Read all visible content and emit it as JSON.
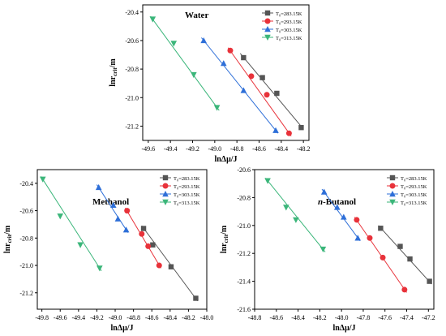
{
  "chart_data": [
    {
      "type": "scatter",
      "title": "Water",
      "title_style": "bold",
      "title_prefix": "",
      "xlabel": "lnΔμ/J",
      "ylabel_main": "lnr",
      "ylabel_sub": "crit",
      "ylabel_unit": "/m",
      "xlim": [
        -49.65,
        -48.15
      ],
      "ylim": [
        -21.3,
        -20.35
      ],
      "xticks": [
        -49.6,
        -49.4,
        -49.2,
        -49.0,
        -48.8,
        -48.6,
        -48.4,
        -48.2
      ],
      "yticks": [
        -21.2,
        -21.0,
        -20.8,
        -20.6,
        -20.4
      ],
      "grid": false,
      "legend_position": "top-right",
      "series": [
        {
          "name": "T₀=283.15K",
          "color": "#555555",
          "marker": "square",
          "x": [
            -48.74,
            -48.57,
            -48.44,
            -48.22
          ],
          "y": [
            -20.72,
            -20.86,
            -20.97,
            -21.21
          ],
          "fit_x": [
            -48.77,
            -48.2
          ],
          "fit_y": [
            -20.69,
            -21.22
          ]
        },
        {
          "name": "T₀=293.15K",
          "color": "#e8323a",
          "marker": "circle",
          "x": [
            -48.86,
            -48.67,
            -48.53,
            -48.33
          ],
          "y": [
            -20.67,
            -20.85,
            -20.98,
            -21.25
          ],
          "fit_x": [
            -48.88,
            -48.31
          ],
          "fit_y": [
            -20.65,
            -21.27
          ]
        },
        {
          "name": "T₀=303.15K",
          "color": "#2e6fd8",
          "marker": "triangle",
          "x": [
            -49.1,
            -48.92,
            -48.74,
            -48.45
          ],
          "y": [
            -20.6,
            -20.76,
            -20.95,
            -21.23
          ],
          "fit_x": [
            -49.12,
            -48.43
          ],
          "fit_y": [
            -20.58,
            -21.25
          ]
        },
        {
          "name": "T₀=313.15K",
          "color": "#3bb67a",
          "marker": "triangle-down",
          "x": [
            -49.56,
            -49.37,
            -49.19,
            -48.98
          ],
          "y": [
            -20.45,
            -20.62,
            -20.84,
            -21.07
          ],
          "fit_x": [
            -49.58,
            -48.96
          ],
          "fit_y": [
            -20.43,
            -21.09
          ]
        }
      ]
    },
    {
      "type": "scatter",
      "title": "Methanol",
      "title_style": "bold",
      "title_prefix": "",
      "xlabel": "lnΔμ/J",
      "ylabel_main": "lnr",
      "ylabel_sub": "crit",
      "ylabel_unit": "/m",
      "xlim": [
        -49.85,
        -48.0
      ],
      "ylim": [
        -21.32,
        -20.3
      ],
      "xticks": [
        -49.8,
        -49.6,
        -49.4,
        -49.2,
        -49.0,
        -48.8,
        -48.6,
        -48.4,
        -48.2,
        -48.0
      ],
      "yticks": [
        -21.2,
        -21.0,
        -20.8,
        -20.6,
        -20.4
      ],
      "grid": false,
      "legend_position": "top-right",
      "series": [
        {
          "name": "T₀=283.15K",
          "color": "#555555",
          "marker": "square",
          "x": [
            -48.69,
            -48.59,
            -48.39,
            -48.12
          ],
          "y": [
            -20.73,
            -20.85,
            -21.01,
            -21.24
          ],
          "fit_x": [
            -48.71,
            -48.1
          ],
          "fit_y": [
            -20.71,
            -21.26
          ]
        },
        {
          "name": "T₀=293.15K",
          "color": "#e8323a",
          "marker": "circle",
          "x": [
            -48.87,
            -48.71,
            -48.64,
            -48.52
          ],
          "y": [
            -20.6,
            -20.77,
            -20.86,
            -21.0
          ],
          "fit_x": [
            -48.89,
            -48.5
          ],
          "fit_y": [
            -20.58,
            -21.02
          ]
        },
        {
          "name": "T₀=303.15K",
          "color": "#2e6fd8",
          "marker": "triangle",
          "x": [
            -49.18,
            -49.02,
            -48.97,
            -48.88
          ],
          "y": [
            -20.43,
            -20.56,
            -20.66,
            -20.74
          ],
          "fit_x": [
            -49.2,
            -48.86
          ],
          "fit_y": [
            -20.41,
            -20.76
          ]
        },
        {
          "name": "T₀=313.15K",
          "color": "#3bb67a",
          "marker": "triangle-down",
          "x": [
            -49.79,
            -49.6,
            -49.38,
            -49.17
          ],
          "y": [
            -20.37,
            -20.64,
            -20.85,
            -21.02
          ],
          "fit_x": [
            -49.81,
            -49.15
          ],
          "fit_y": [
            -20.35,
            -21.04
          ]
        }
      ]
    },
    {
      "type": "scatter",
      "title": "Butanol",
      "title_style": "bold",
      "title_prefix": "n-",
      "xlabel": "lnΔμ/J",
      "ylabel_main": "lnr",
      "ylabel_sub": "crit",
      "ylabel_unit": "/m",
      "xlim": [
        -48.8,
        -47.15
      ],
      "ylim": [
        -21.6,
        -20.6
      ],
      "xticks": [
        -48.8,
        -48.6,
        -48.4,
        -48.2,
        -48.0,
        -47.8,
        -47.6,
        -47.4,
        -47.2
      ],
      "yticks": [
        -21.6,
        -21.4,
        -21.2,
        -21.0,
        -20.8,
        -20.6
      ],
      "grid": false,
      "legend_position": "top-right",
      "series": [
        {
          "name": "T₀=283.15K",
          "color": "#555555",
          "marker": "square",
          "x": [
            -47.64,
            -47.46,
            -47.37,
            -47.19
          ],
          "y": [
            -21.02,
            -21.15,
            -21.24,
            -21.4
          ],
          "fit_x": [
            -47.66,
            -47.17
          ],
          "fit_y": [
            -21.0,
            -21.42
          ]
        },
        {
          "name": "T₀=293.15K",
          "color": "#e8323a",
          "marker": "circle",
          "x": [
            -47.86,
            -47.74,
            -47.62,
            -47.42
          ],
          "y": [
            -20.96,
            -21.09,
            -21.23,
            -21.46
          ],
          "fit_x": [
            -47.88,
            -47.4
          ],
          "fit_y": [
            -20.94,
            -21.48
          ]
        },
        {
          "name": "T₀=303.15K",
          "color": "#2e6fd8",
          "marker": "triangle",
          "x": [
            -48.16,
            -48.04,
            -47.98,
            -47.85
          ],
          "y": [
            -20.76,
            -20.87,
            -20.94,
            -21.09
          ],
          "fit_x": [
            -48.18,
            -47.83
          ],
          "fit_y": [
            -20.74,
            -21.11
          ]
        },
        {
          "name": "T₀=313.15K",
          "color": "#3bb67a",
          "marker": "triangle-down",
          "x": [
            -48.68,
            -48.51,
            -48.42,
            -48.17
          ],
          "y": [
            -20.68,
            -20.87,
            -20.96,
            -21.17
          ],
          "fit_x": [
            -48.7,
            -48.15
          ],
          "fit_y": [
            -20.66,
            -21.19
          ]
        }
      ]
    }
  ]
}
